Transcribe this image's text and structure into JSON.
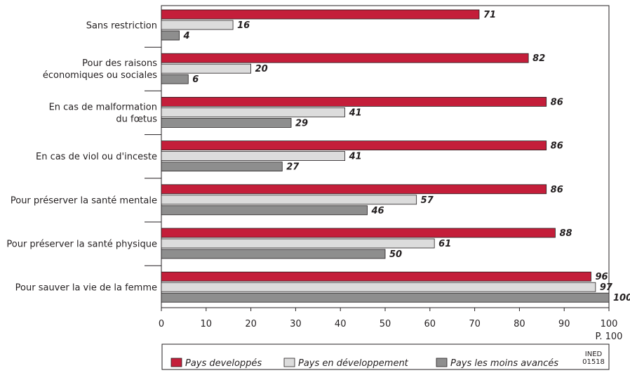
{
  "chart_data": {
    "type": "bar",
    "orientation": "horizontal",
    "categories": [
      [
        "Sans restriction"
      ],
      [
        "Pour des raisons",
        "économiques ou sociales"
      ],
      [
        "En cas de malformation",
        "du fœtus"
      ],
      [
        "En cas de viol ou d'inceste"
      ],
      [
        "Pour préserver la santé mentale"
      ],
      [
        "Pour préserver la santé physique"
      ],
      [
        "Pour sauver la vie de la femme"
      ]
    ],
    "series": [
      {
        "name": "Pays developpés",
        "color": "#c41e3a",
        "values": [
          71,
          82,
          86,
          86,
          86,
          88,
          96
        ]
      },
      {
        "name": "Pays en développement",
        "color": "#dcdcdc",
        "values": [
          16,
          20,
          41,
          41,
          57,
          61,
          97
        ]
      },
      {
        "name": "Pays les moins avancés",
        "color": "#8e8e8e",
        "values": [
          4,
          6,
          29,
          27,
          46,
          50,
          100
        ]
      }
    ],
    "xlim": [
      0,
      100
    ],
    "xticks": [
      0,
      10,
      20,
      30,
      40,
      50,
      60,
      70,
      80,
      90,
      100
    ],
    "unit_label": "P. 100",
    "grid": false,
    "legend_position": "bottom"
  },
  "credit": [
    "INED",
    "01518"
  ]
}
